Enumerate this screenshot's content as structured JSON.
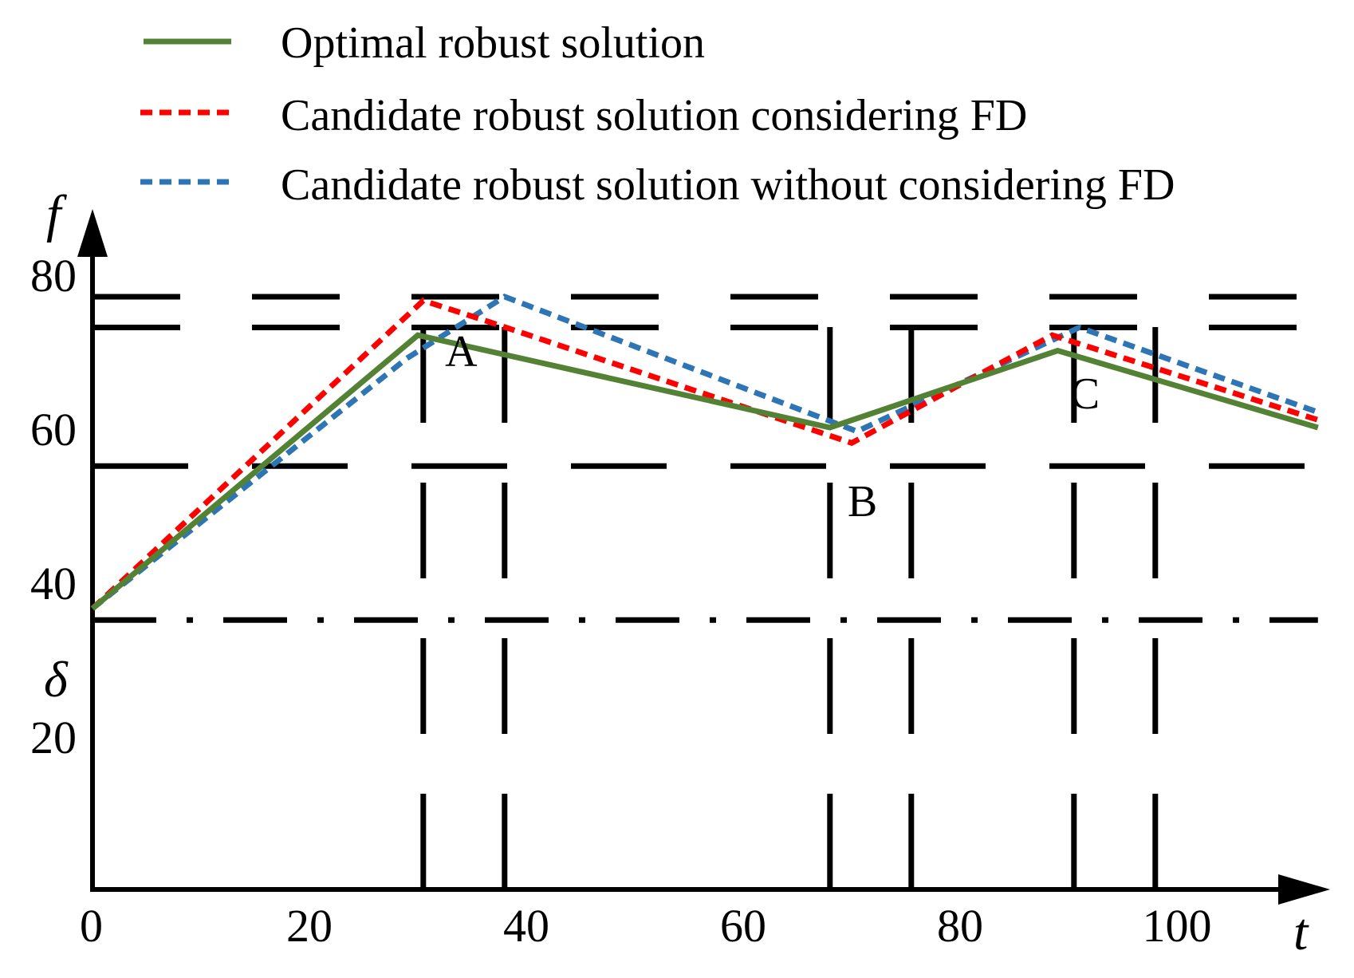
{
  "chart_data": {
    "type": "line",
    "xlabel": "t",
    "ylabel": "f",
    "xlim": [
      0,
      113
    ],
    "ylim": [
      0,
      88
    ],
    "x_ticks": [
      "0",
      "20",
      "40",
      "60",
      "80",
      "100"
    ],
    "x_tick_values": [
      0,
      20,
      40,
      60,
      80,
      100
    ],
    "y_ticks": [
      "20",
      "40",
      "60",
      "80"
    ],
    "y_tick_values": [
      20,
      40,
      60,
      80
    ],
    "delta": {
      "label": "δ",
      "value": 35
    },
    "legend_position": "top",
    "series": [
      {
        "name": "Optimal robust solution",
        "color": "#548235",
        "style": "solid",
        "x": [
          0,
          30,
          68,
          89,
          113
        ],
        "y": [
          36.5,
          72,
          60,
          70,
          60
        ]
      },
      {
        "name": "Candidate robust solution considering FD",
        "color": "#ff0000",
        "style": "dashed",
        "x": [
          0,
          30.5,
          36,
          70,
          88.5,
          113
        ],
        "y": [
          36.5,
          76.5,
          74,
          58,
          72,
          61
        ]
      },
      {
        "name": "Candidate robust solution without considering FD",
        "color": "#2e75b6",
        "style": "dashed",
        "x": [
          0,
          29,
          38,
          70.5,
          91,
          113
        ],
        "y": [
          36.5,
          69,
          77,
          59.5,
          73,
          62
        ]
      }
    ],
    "annotations": [
      {
        "text": "A",
        "x": 34,
        "y": 68
      },
      {
        "text": "B",
        "x": 71,
        "y": 48.5
      },
      {
        "text": "C",
        "x": 91.5,
        "y": 62.5
      }
    ],
    "constraint_lines": {
      "horizontal_double": [
        77,
        73
      ],
      "horizontal_dashed": [
        55
      ],
      "vertical_pairs": [
        [
          30.5,
          38
        ],
        [
          68,
          75.5
        ],
        [
          90.5,
          98
        ]
      ]
    }
  }
}
